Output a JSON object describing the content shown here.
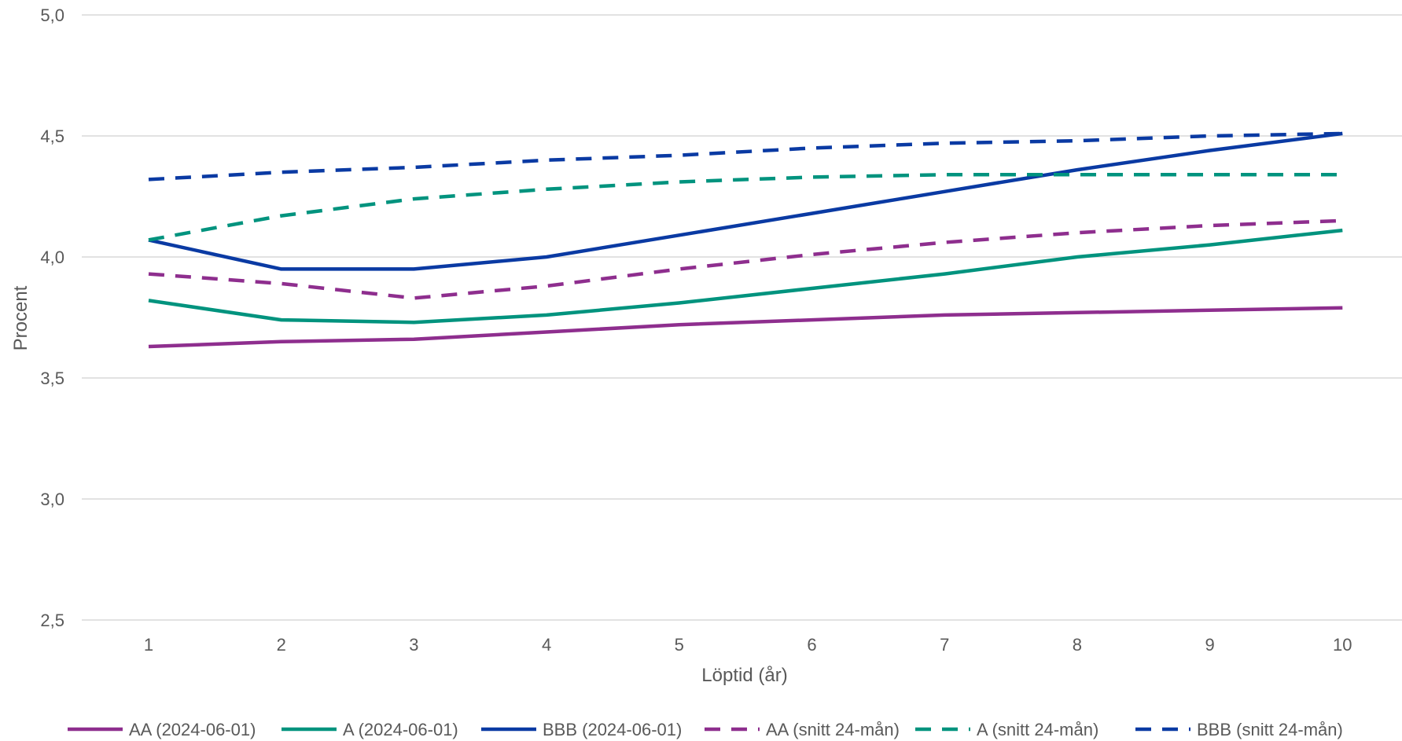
{
  "chart_data": {
    "type": "line",
    "xlabel": "Löptid (år)",
    "ylabel": "Procent",
    "x": [
      1,
      2,
      3,
      4,
      5,
      6,
      7,
      8,
      9,
      10
    ],
    "ylim": [
      2.5,
      5.0
    ],
    "yticks": [
      "2,5",
      "3,0",
      "3,5",
      "4,0",
      "4,5",
      "5,0"
    ],
    "ytick_values": [
      2.5,
      3.0,
      3.5,
      4.0,
      4.5,
      5.0
    ],
    "grid": "horizontal",
    "legend_position": "bottom",
    "series": [
      {
        "name": "AA (2024-06-01)",
        "color": "#8e2e8e",
        "dash": false,
        "values": [
          3.63,
          3.65,
          3.66,
          3.69,
          3.72,
          3.74,
          3.76,
          3.77,
          3.78,
          3.79
        ]
      },
      {
        "name": "A (2024-06-01)",
        "color": "#00937e",
        "dash": false,
        "values": [
          3.82,
          3.74,
          3.73,
          3.76,
          3.81,
          3.87,
          3.93,
          4.0,
          4.05,
          4.11
        ]
      },
      {
        "name": "BBB (2024-06-01)",
        "color": "#0a3aa3",
        "dash": false,
        "values": [
          4.07,
          3.95,
          3.95,
          4.0,
          4.09,
          4.18,
          4.27,
          4.36,
          4.44,
          4.51
        ]
      },
      {
        "name": "AA (snitt 24-mån)",
        "color": "#8e2e8e",
        "dash": true,
        "values": [
          3.93,
          3.89,
          3.83,
          3.88,
          3.95,
          4.01,
          4.06,
          4.1,
          4.13,
          4.15
        ]
      },
      {
        "name": "A (snitt 24-mån)",
        "color": "#00937e",
        "dash": true,
        "values": [
          4.07,
          4.17,
          4.24,
          4.28,
          4.31,
          4.33,
          4.34,
          4.34,
          4.34,
          4.34
        ]
      },
      {
        "name": "BBB (snitt 24-mån)",
        "color": "#0a3aa3",
        "dash": true,
        "values": [
          4.32,
          4.35,
          4.37,
          4.4,
          4.42,
          4.45,
          4.47,
          4.48,
          4.5,
          4.51
        ]
      }
    ]
  }
}
